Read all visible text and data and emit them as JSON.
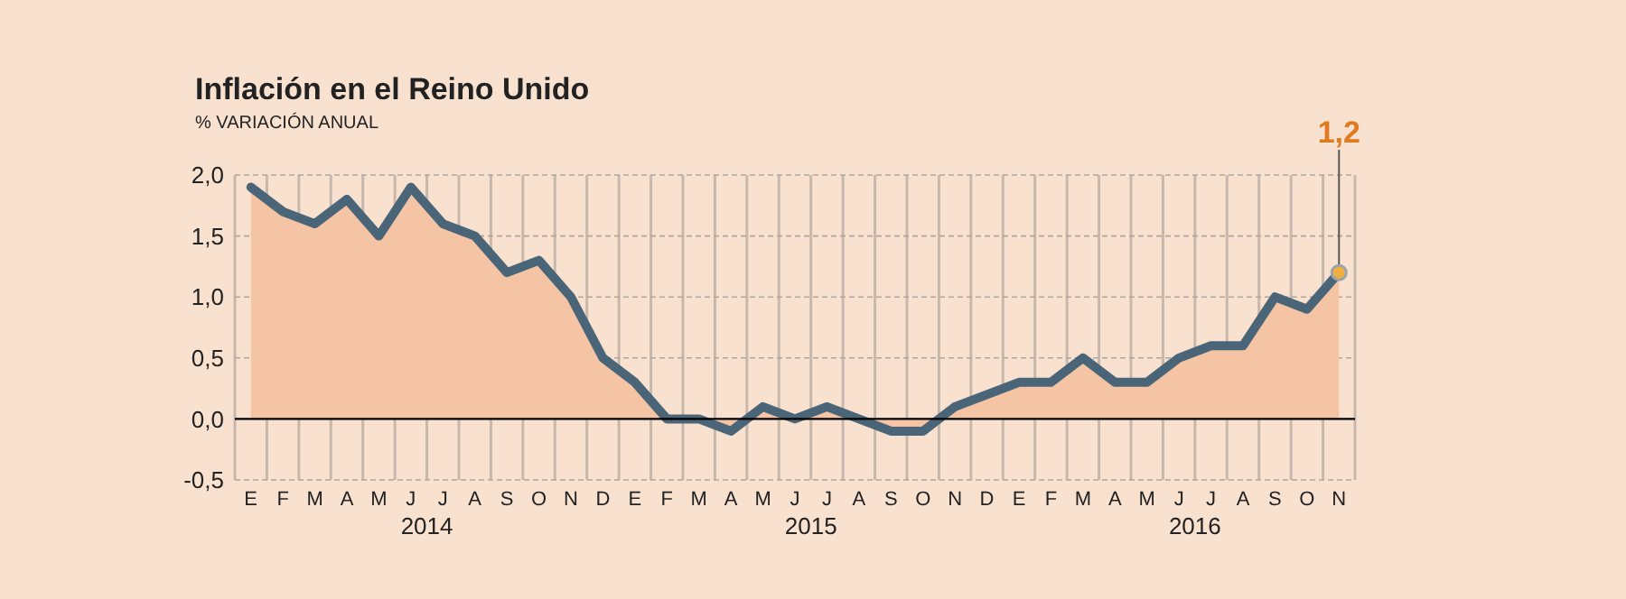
{
  "chart_data": {
    "type": "line",
    "title": "Inflación en el Reino Unido",
    "subtitle": "% VARIACIÓN ANUAL",
    "categories": [
      "E",
      "F",
      "M",
      "A",
      "M",
      "J",
      "J",
      "A",
      "S",
      "O",
      "N",
      "D",
      "E",
      "F",
      "M",
      "A",
      "M",
      "J",
      "J",
      "A",
      "S",
      "O",
      "N",
      "D",
      "E",
      "F",
      "M",
      "A",
      "M",
      "J",
      "J",
      "A",
      "S",
      "O",
      "N"
    ],
    "series": [
      {
        "color": "#4a6578",
        "values": [
          1.9,
          1.7,
          1.6,
          1.8,
          1.5,
          1.9,
          1.6,
          1.5,
          1.2,
          1.3,
          1.0,
          0.5,
          0.3,
          0.0,
          0.0,
          -0.1,
          0.1,
          0.0,
          0.1,
          0.0,
          -0.1,
          -0.1,
          0.1,
          0.2,
          0.3,
          0.3,
          0.5,
          0.3,
          0.3,
          0.5,
          0.6,
          0.6,
          1.0,
          0.9,
          1.2
        ],
        "value_labels": [
          null,
          null,
          null,
          null,
          null,
          null,
          null,
          null,
          null,
          null,
          null,
          null,
          null,
          null,
          null,
          null,
          null,
          null,
          null,
          null,
          null,
          null,
          null,
          null,
          null,
          null,
          null,
          null,
          null,
          null,
          null,
          null,
          null,
          null,
          "1,2"
        ]
      }
    ],
    "ylim": [
      -0.5,
      2.0
    ],
    "yticks": [
      {
        "value": -0.5,
        "label": "-0,5"
      },
      {
        "value": 0,
        "label": "0,0"
      },
      {
        "value": 0.5,
        "label": "0,5"
      },
      {
        "value": 1,
        "label": "1,0"
      },
      {
        "value": 1.5,
        "label": "1,5"
      },
      {
        "value": 2,
        "label": "2,0"
      }
    ],
    "grid": true,
    "annotations": [
      "2014",
      "2015",
      "2016"
    ]
  }
}
